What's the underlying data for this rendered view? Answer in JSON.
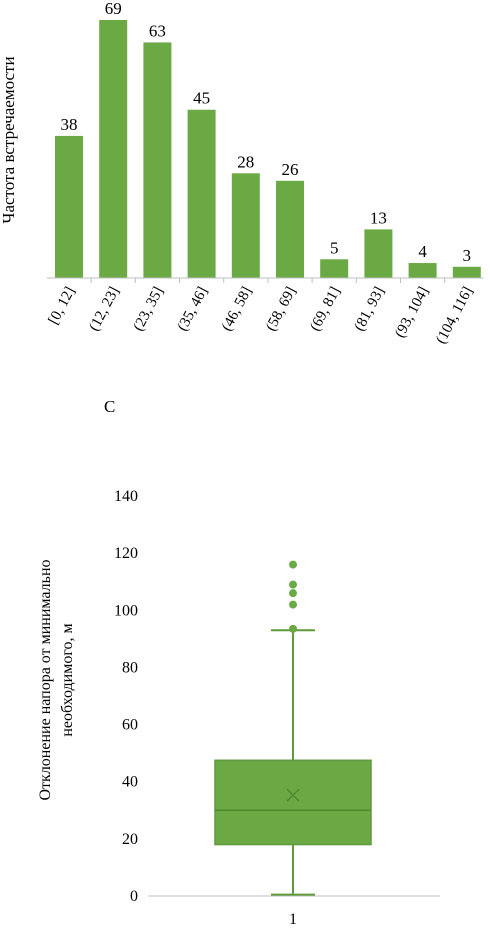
{
  "chart_data": [
    {
      "type": "bar",
      "ylabel": "Частота встречаемости",
      "xlabel": "С",
      "categories": [
        "[0, 12]",
        "(12, 23]",
        "(23, 35]",
        "(35, 46]",
        "(46, 58]",
        "(58, 69]",
        "(69, 81]",
        "(81, 93]",
        "(93, 104]",
        "(104, 116]"
      ],
      "values": [
        38,
        69,
        63,
        45,
        28,
        26,
        5,
        13,
        4,
        3
      ],
      "ylim": [
        0,
        69
      ],
      "grid": false,
      "colors": {
        "bar": "#6aa944"
      }
    },
    {
      "type": "box",
      "ylabel_lines": [
        "Отклонение напора от минимально",
        "необходимого, м"
      ],
      "categories": [
        "1"
      ],
      "yticks": [
        "0",
        "20",
        "40",
        "60",
        "80",
        "100",
        "120",
        "140"
      ],
      "ylim": [
        0,
        140
      ],
      "box": {
        "min": 0.5,
        "q1": 18,
        "median": 30,
        "mean": 35.3,
        "q3": 47.5,
        "whisker_high": 93,
        "outliers": [
          93.5,
          102,
          106,
          109,
          116
        ]
      },
      "grid": false,
      "colors": {
        "box": "#6aa944",
        "line": "#5f9a3c"
      }
    }
  ]
}
